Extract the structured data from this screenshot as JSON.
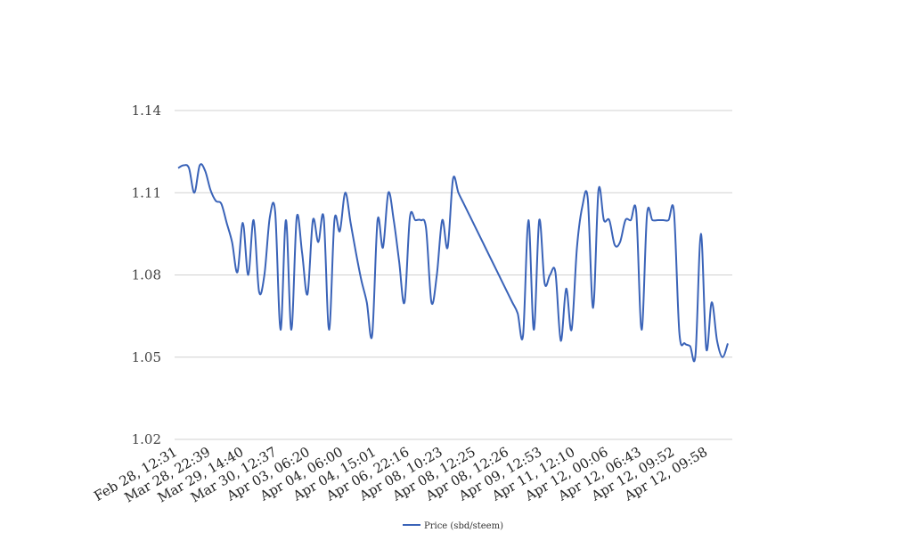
{
  "chart_data": {
    "type": "line",
    "title": "",
    "xlabel": "",
    "ylabel": "",
    "ylim": [
      1.02,
      1.14
    ],
    "y_ticks": [
      "1.14",
      "1.11",
      "1.08",
      "1.05",
      "1.02"
    ],
    "grid": true,
    "legend_position": "bottom",
    "x_tick_labels": [
      "Feb 28, 12:31",
      "Mar 28, 22:39",
      "Mar 29, 14:40",
      "Mar 30, 12:37",
      "Apr 03, 06:20",
      "Apr 04, 06:00",
      "Apr 04, 15:01",
      "Apr 06, 22:16",
      "Apr 08, 10:23",
      "Apr 08, 12:25",
      "Apr 08, 12:26",
      "Apr 09, 12:53",
      "Apr 11, 12:10",
      "Apr 12, 00:06",
      "Apr 12, 06:43",
      "Apr 12, 09:52",
      "Apr 12, 09:58"
    ],
    "series": [
      {
        "name": "Price (sbd/steem)",
        "color": "#3a63b8",
        "values": [
          1.119,
          1.12,
          1.119,
          1.11,
          1.12,
          1.118,
          1.111,
          1.107,
          1.106,
          1.099,
          1.092,
          1.081,
          1.099,
          1.08,
          1.1,
          1.074,
          1.08,
          1.101,
          1.103,
          1.06,
          1.1,
          1.06,
          1.101,
          1.088,
          1.073,
          1.1,
          1.092,
          1.101,
          1.06,
          1.1,
          1.096,
          1.11,
          1.099,
          1.088,
          1.078,
          1.07,
          1.058,
          1.1,
          1.09,
          1.11,
          1.1,
          1.085,
          1.07,
          1.101,
          1.1,
          1.1,
          1.097,
          1.07,
          1.08,
          1.1,
          1.09,
          1.115,
          1.11,
          1.106,
          1.102,
          1.098,
          1.094,
          1.09,
          1.086,
          1.082,
          1.078,
          1.074,
          1.07,
          1.066,
          1.058,
          1.1,
          1.06,
          1.1,
          1.077,
          1.08,
          1.081,
          1.056,
          1.075,
          1.06,
          1.09,
          1.105,
          1.108,
          1.068,
          1.111,
          1.1,
          1.1,
          1.091,
          1.092,
          1.1,
          1.1,
          1.103,
          1.06,
          1.102,
          1.1,
          1.1,
          1.1,
          1.1,
          1.103,
          1.059,
          1.055,
          1.054,
          1.051,
          1.095,
          1.053,
          1.07,
          1.056,
          1.05,
          1.055
        ]
      }
    ]
  }
}
